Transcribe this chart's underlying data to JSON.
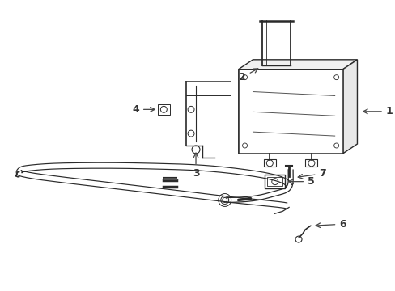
{
  "background_color": "#ffffff",
  "line_color": "#2a2a2a",
  "line_width": 1.0,
  "fig_width": 4.89,
  "fig_height": 3.6,
  "dpi": 100,
  "label_fontsize": 9,
  "arrow_color": "#444444"
}
